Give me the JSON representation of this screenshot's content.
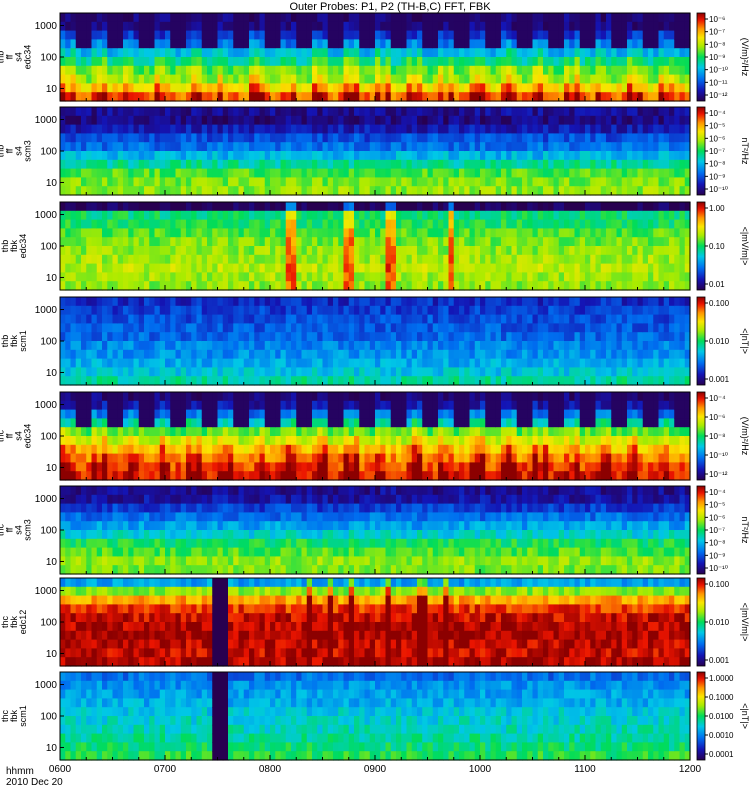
{
  "chart_data": {
    "type": "heatmap",
    "title": "Outer Probes: P1, P2 (TH-B,C) FFT, FBK",
    "x": {
      "label": "hhmm",
      "date_label": "2010 Dec 20",
      "tick_labels": [
        "0600",
        "0700",
        "0800",
        "0900",
        "1000",
        "1100",
        "1200"
      ],
      "range": [
        "06:00",
        "12:00"
      ]
    },
    "panels": [
      {
        "ylabel": [
          "thb",
          "ff",
          "s4",
          "edc34"
        ],
        "y_tick_labels": [
          "1000",
          "100",
          "10"
        ],
        "scale": "log",
        "colorbar_label": "(V/m)²/Hz",
        "colorbar_ticks": [
          "10⁻⁶",
          "10⁻⁷",
          "10⁻⁸",
          "10⁻⁹",
          "10⁻¹⁰",
          "10⁻¹¹",
          "10⁻¹²"
        ]
      },
      {
        "ylabel": [
          "thb",
          "ff",
          "s4",
          "scm3"
        ],
        "y_tick_labels": [
          "1000",
          "100",
          "10"
        ],
        "scale": "log",
        "colorbar_label": "nT²/Hz",
        "colorbar_ticks": [
          "10⁻⁴",
          "10⁻⁵",
          "10⁻⁶",
          "10⁻⁷",
          "10⁻⁸",
          "10⁻⁹",
          "10⁻¹⁰"
        ]
      },
      {
        "ylabel": [
          "thb",
          "fbk",
          "edc34"
        ],
        "y_tick_labels": [
          "1000",
          "100",
          "10"
        ],
        "scale": "log",
        "colorbar_label": "<|mV/m|>",
        "colorbar_ticks": [
          "1.00",
          "0.10",
          "0.01"
        ]
      },
      {
        "ylabel": [
          "thb",
          "fbk",
          "scm1"
        ],
        "y_tick_labels": [
          "1000",
          "100",
          "10"
        ],
        "scale": "log",
        "colorbar_label": "<|nT|>",
        "colorbar_ticks": [
          "0.100",
          "0.010",
          "0.001"
        ]
      },
      {
        "ylabel": [
          "thc",
          "ff",
          "s4",
          "edc34"
        ],
        "y_tick_labels": [
          "1000",
          "100",
          "10"
        ],
        "scale": "log",
        "colorbar_label": "(V/m)²/Hz",
        "colorbar_ticks": [
          "10⁻⁴",
          "10⁻⁶",
          "10⁻⁸",
          "10⁻¹⁰",
          "10⁻¹²"
        ]
      },
      {
        "ylabel": [
          "thc",
          "ff",
          "s4",
          "scm3"
        ],
        "y_tick_labels": [
          "1000",
          "100",
          "10"
        ],
        "scale": "log",
        "colorbar_label": "nT²/Hz",
        "colorbar_ticks": [
          "10⁻⁴",
          "10⁻⁵",
          "10⁻⁶",
          "10⁻⁷",
          "10⁻⁸",
          "10⁻⁹",
          "10⁻¹⁰"
        ]
      },
      {
        "ylabel": [
          "thc",
          "fbk",
          "edc12"
        ],
        "y_tick_labels": [
          "1000",
          "100",
          "10"
        ],
        "scale": "log",
        "colorbar_label": "<|mV/m|>",
        "colorbar_ticks": [
          "0.100",
          "0.010",
          "0.001"
        ]
      },
      {
        "ylabel": [
          "thc",
          "fbk",
          "scm1"
        ],
        "y_tick_labels": [
          "1000",
          "100",
          "10"
        ],
        "scale": "log",
        "colorbar_label": "<|nT|>",
        "colorbar_ticks": [
          "1.0000",
          "0.1000",
          "0.0100",
          "0.0010",
          "0.0001"
        ]
      }
    ]
  }
}
